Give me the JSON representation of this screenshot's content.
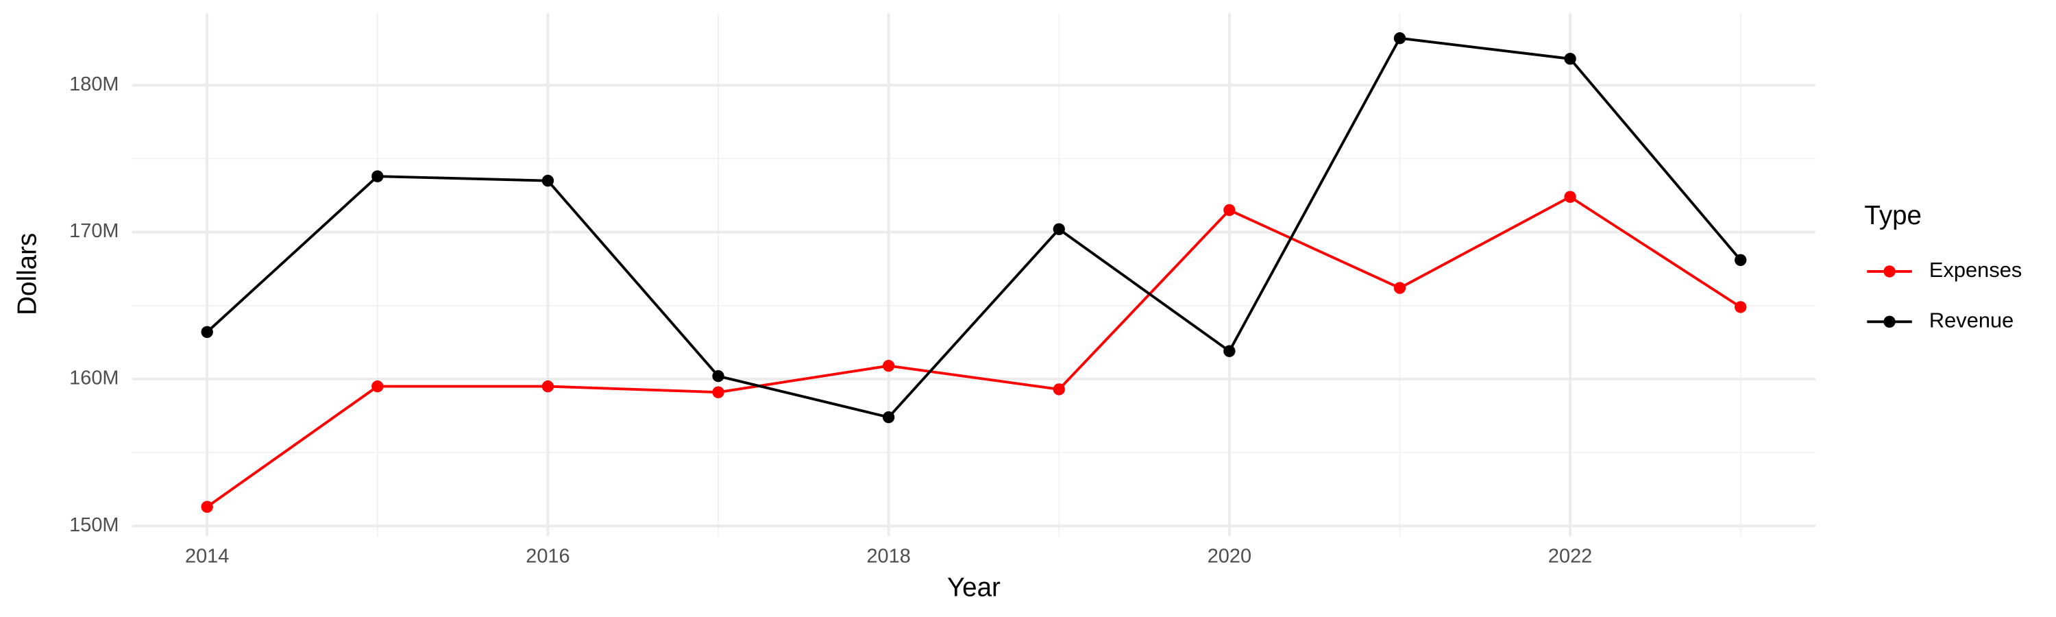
{
  "chart_data": {
    "type": "line",
    "x_label": "Year",
    "y_label": "Dollars",
    "legend_title": "Type",
    "legend_position": "right",
    "grid": true,
    "x": [
      2014,
      2015,
      2016,
      2017,
      2018,
      2019,
      2020,
      2021,
      2022,
      2023
    ],
    "series": [
      {
        "name": "Expenses",
        "color": "#ff0000",
        "values": [
          151300000,
          159500000,
          159500000,
          159100000,
          160900000,
          159300000,
          171500000,
          166200000,
          172400000,
          164900000
        ]
      },
      {
        "name": "Revenue",
        "color": "#000000",
        "values": [
          163200000,
          173800000,
          173500000,
          160200000,
          157400000,
          170200000,
          161900000,
          183200000,
          181800000,
          168100000
        ]
      }
    ],
    "xlim": [
      2013.56,
      2023.44
    ],
    "xticks": [
      2014,
      2016,
      2018,
      2020,
      2022
    ],
    "ylim": [
      149300000,
      184900000
    ],
    "yticks": [
      {
        "value": 150000000,
        "label": "150M"
      },
      {
        "value": 160000000,
        "label": "160M"
      },
      {
        "value": 170000000,
        "label": "170M"
      },
      {
        "value": 180000000,
        "label": "180M"
      }
    ]
  }
}
